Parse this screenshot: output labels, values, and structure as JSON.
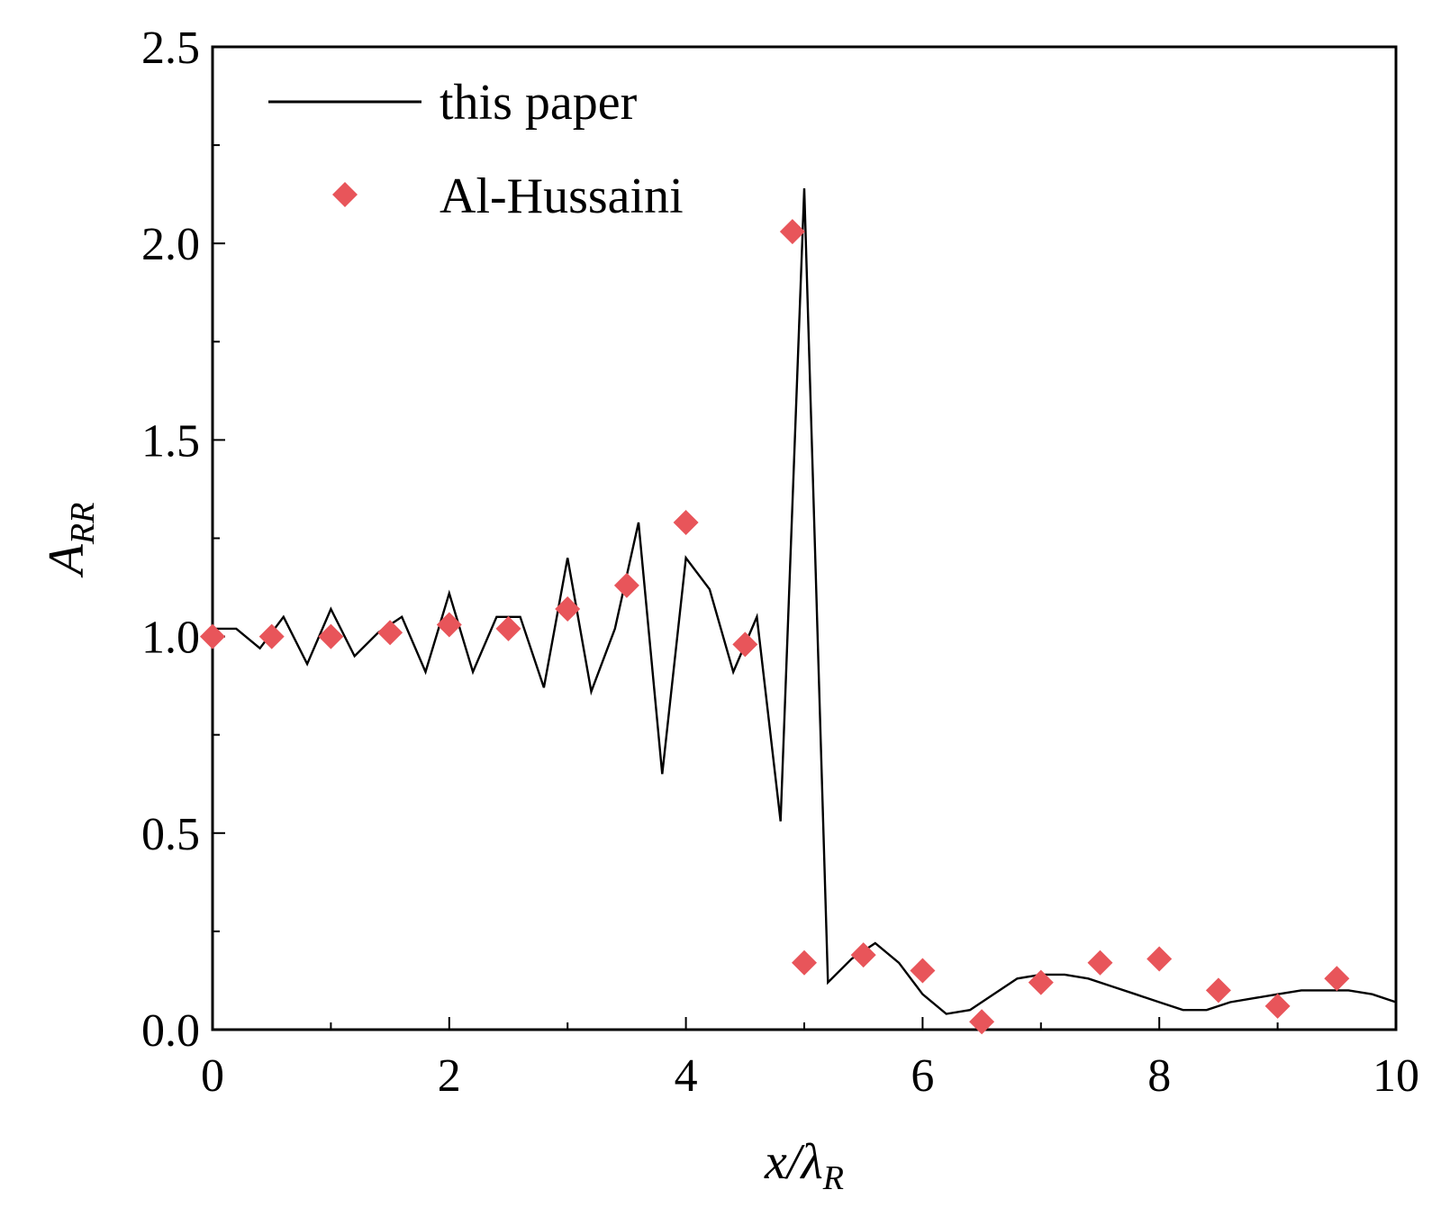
{
  "chart_data": {
    "type": "line",
    "title": "",
    "xlabel": {
      "main": "x/λ",
      "sub": "R"
    },
    "ylabel": {
      "main": "A",
      "sub": "RR"
    },
    "xlim": [
      0,
      10
    ],
    "ylim": [
      0,
      2.5
    ],
    "xticks": [
      "0",
      "2",
      "4",
      "6",
      "8",
      "10"
    ],
    "yticks": [
      "0.0",
      "0.5",
      "1.0",
      "1.5",
      "2.0",
      "2.5"
    ],
    "legend_position": "top-left",
    "grid": false,
    "series": [
      {
        "name": "this paper",
        "kind": "line",
        "color": "#000000",
        "x": [
          0,
          0.2,
          0.4,
          0.6,
          0.8,
          1.0,
          1.2,
          1.4,
          1.6,
          1.8,
          2.0,
          2.2,
          2.4,
          2.6,
          2.8,
          3.0,
          3.2,
          3.4,
          3.6,
          3.8,
          4.0,
          4.2,
          4.4,
          4.6,
          4.8,
          5.0,
          5.2,
          5.4,
          5.6,
          5.8,
          6.0,
          6.2,
          6.4,
          6.6,
          6.8,
          7.0,
          7.2,
          7.4,
          7.6,
          7.8,
          8.0,
          8.2,
          8.4,
          8.6,
          8.8,
          9.0,
          9.2,
          9.4,
          9.6,
          9.8,
          10.0
        ],
        "y": [
          1.02,
          1.02,
          0.97,
          1.05,
          0.93,
          1.07,
          0.95,
          1.01,
          1.05,
          0.91,
          1.11,
          0.91,
          1.05,
          1.05,
          0.87,
          1.2,
          0.86,
          1.02,
          1.29,
          0.65,
          1.2,
          1.12,
          0.91,
          1.05,
          0.53,
          2.14,
          0.12,
          0.18,
          0.22,
          0.17,
          0.09,
          0.04,
          0.05,
          0.09,
          0.13,
          0.14,
          0.14,
          0.13,
          0.11,
          0.09,
          0.07,
          0.05,
          0.05,
          0.07,
          0.08,
          0.09,
          0.1,
          0.1,
          0.1,
          0.09,
          0.07
        ]
      },
      {
        "name": "Al-Hussaini",
        "kind": "scatter",
        "marker": "diamond",
        "color": "#e8555a",
        "x": [
          0,
          0.5,
          1.0,
          1.5,
          2.0,
          2.5,
          3.0,
          3.5,
          4.0,
          4.5,
          4.9,
          5.0,
          5.5,
          6.0,
          6.5,
          7.0,
          7.5,
          8.0,
          8.5,
          9.0,
          9.5
        ],
        "y": [
          1.0,
          1.0,
          1.0,
          1.01,
          1.03,
          1.02,
          1.07,
          1.13,
          1.29,
          0.98,
          2.03,
          0.17,
          0.19,
          0.15,
          0.02,
          0.12,
          0.17,
          0.18,
          0.1,
          0.06,
          0.13
        ]
      }
    ]
  }
}
